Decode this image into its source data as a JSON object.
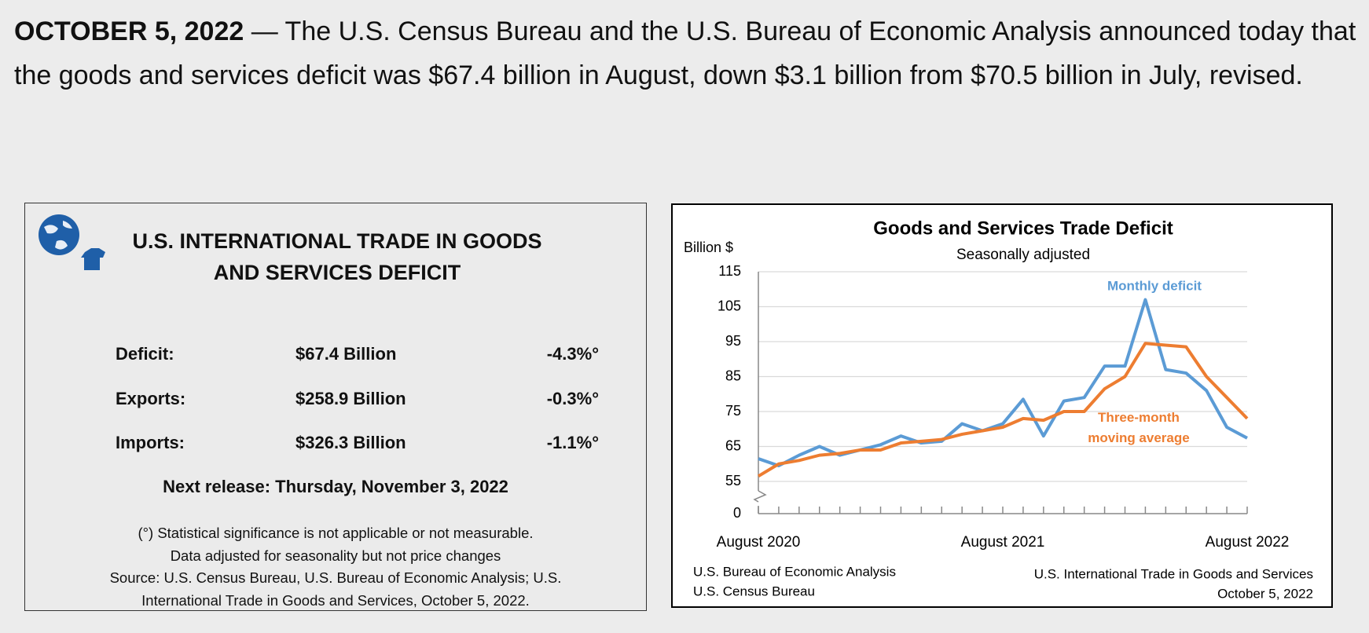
{
  "header": {
    "dateline": "OCTOBER 5, 2022",
    "text": " — The U.S. Census Bureau and the U.S. Bureau of Economic Analysis announced today that the goods and services deficit was $67.4 billion in August, down $3.1 billion from $70.5 billion in July, revised."
  },
  "summary": {
    "title": "U.S. INTERNATIONAL TRADE IN GOODS AND SERVICES DEFICIT",
    "rows": [
      [
        "Deficit:",
        "$67.4 Billion",
        "-4.3%°"
      ],
      [
        "Exports:",
        "$258.9 Billion",
        "-0.3%°"
      ],
      [
        "Imports:",
        "$326.3 Billion",
        "-1.1%°"
      ]
    ],
    "next_release": "Next release: Thursday, November 3, 2022",
    "notes": [
      "(°) Statistical significance is not applicable or not measurable.",
      "Data adjusted for seasonality but not price changes",
      "Source: U.S. Census Bureau, U.S. Bureau of Economic Analysis; U.S.",
      "International Trade in Goods and Services, October 5, 2022."
    ]
  },
  "chart_data": {
    "type": "line",
    "title": "Goods and Services Trade Deficit",
    "subtitle": "Seasonally adjusted",
    "y_label": "Billion $",
    "categories": [
      "August 2020",
      null,
      null,
      null,
      null,
      null,
      null,
      null,
      null,
      null,
      null,
      null,
      "August 2021",
      null,
      null,
      null,
      null,
      null,
      null,
      null,
      null,
      null,
      null,
      null,
      "August 2022"
    ],
    "series": [
      {
        "name": "Monthly deficit",
        "color": "#5b9bd5",
        "values": [
          61.5,
          59.5,
          62.5,
          65,
          62.5,
          64,
          65.5,
          68,
          66,
          66.5,
          71.5,
          69.5,
          71.5,
          78.5,
          68,
          78,
          79,
          88,
          88,
          107,
          87,
          86,
          81,
          70.5,
          67.4
        ]
      },
      {
        "name": "Three-month moving average",
        "color": "#ed7d31",
        "values": [
          56.5,
          60,
          61,
          62.5,
          63,
          64,
          64,
          66,
          66.5,
          67,
          68.5,
          69.5,
          70.5,
          73,
          72.5,
          75,
          75,
          81.5,
          85,
          94.5,
          94,
          93.5,
          85,
          79,
          73
        ]
      }
    ],
    "ylim": [
      0,
      115
    ],
    "yticks": [
      0,
      55,
      65,
      75,
      85,
      95,
      105,
      115
    ],
    "axis_break": [
      0,
      55
    ],
    "grid": true,
    "footer_left": [
      "U.S. Bureau of Economic Analysis",
      "U.S. Census Bureau"
    ],
    "footer_right": [
      "U.S. International Trade in Goods and Services",
      "October 5, 2022"
    ]
  }
}
